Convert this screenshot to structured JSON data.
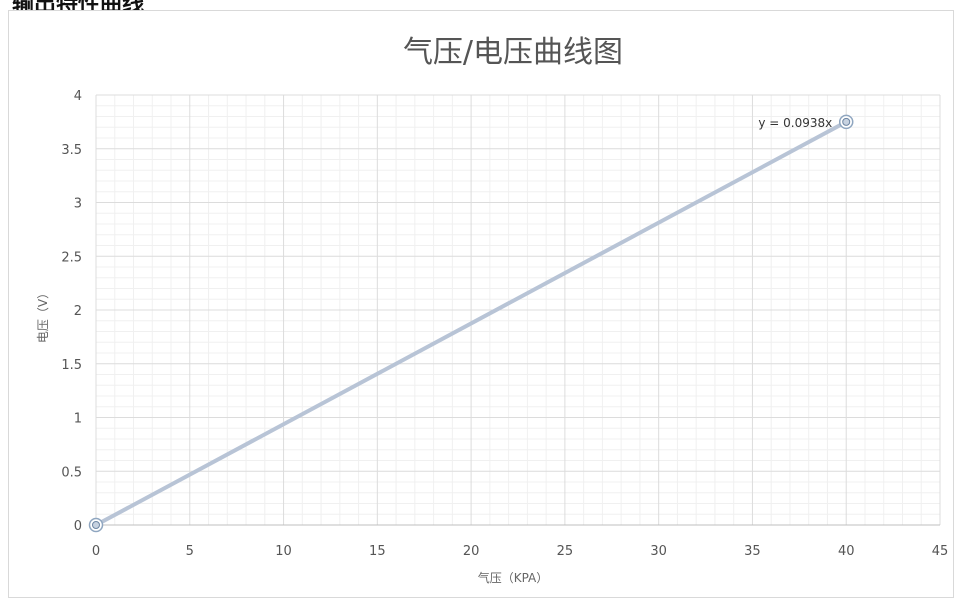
{
  "page_heading": "输出特性曲线",
  "chart_data": {
    "type": "scatter",
    "title": "气压/电压曲线图",
    "xlabel": "气压（KPA）",
    "ylabel": "电压（V）",
    "xlim": [
      0,
      45
    ],
    "ylim": [
      0,
      4
    ],
    "xticks": [
      0,
      5,
      10,
      15,
      20,
      25,
      30,
      35,
      40,
      45
    ],
    "yticks": [
      0,
      0.5,
      1,
      1.5,
      2,
      2.5,
      3,
      3.5,
      4
    ],
    "grid": true,
    "minor_grid": true,
    "series": [
      {
        "x": [
          0,
          40
        ],
        "y": [
          0,
          3.75
        ],
        "color": "#b8c4d6",
        "line": true,
        "marker": "circle"
      }
    ],
    "trendline": {
      "equation": "y = 0.0938x",
      "slope": 0.0938
    }
  }
}
